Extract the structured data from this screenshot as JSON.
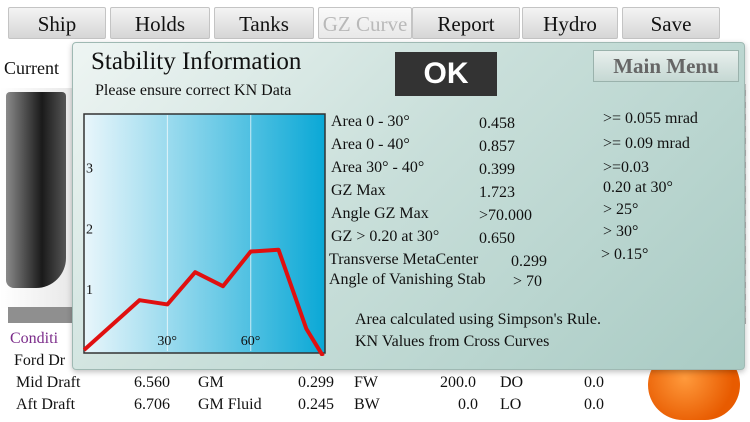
{
  "tabs": [
    {
      "label": "Ship",
      "disabled": false
    },
    {
      "label": "Holds",
      "disabled": false
    },
    {
      "label": "Tanks",
      "disabled": false
    },
    {
      "label": "GZ Curve",
      "disabled": true
    },
    {
      "label": "Report",
      "disabled": false
    },
    {
      "label": "Hydro",
      "disabled": false
    },
    {
      "label": "Save",
      "disabled": false
    }
  ],
  "background": {
    "current_label": "Current",
    "condition_label": "Conditi",
    "rows": [
      {
        "c1": "Ford Dr",
        "c2": "",
        "c3": "",
        "c4": "",
        "c5": "",
        "c6": "",
        "c7": "",
        "c8": ""
      },
      {
        "c1": "Mid Draft",
        "c2": "6.560",
        "c3": "GM",
        "c4": "0.299",
        "c5": "FW",
        "c6": "200.0",
        "c7": "DO",
        "c8": "0.0"
      },
      {
        "c1": "Aft Draft",
        "c2": "6.706",
        "c3": "GM Fluid",
        "c4": "0.245",
        "c5": "BW",
        "c6": "0.0",
        "c7": "LO",
        "c8": "0.0"
      }
    ]
  },
  "dialog": {
    "title": "Stability Information",
    "subtitle": "Please ensure correct KN Data",
    "ok_label": "OK",
    "main_menu_label": "Main Menu",
    "rows": [
      {
        "label": "Area 0 - 30°",
        "value": "0.458",
        "criterion": ">= 0.055 mrad"
      },
      {
        "label": "Area 0 - 40°",
        "value": "0.857",
        "criterion": ">= 0.09 mrad"
      },
      {
        "label": "Area 30° - 40°",
        "value": "0.399",
        "criterion": ">=0.03"
      },
      {
        "label": "GZ Max",
        "value": "1.723",
        "criterion": "0.20 at 30°"
      },
      {
        "label": "Angle GZ Max",
        "value": ">70.000",
        "criterion": "> 25°"
      },
      {
        "label": "GZ > 0.20 at 30°",
        "value": "0.650",
        "criterion": "> 30°"
      }
    ],
    "extra_criterion": "> 0.15°",
    "transverse_label": "Transverse MetaCenter",
    "transverse_value": "0.299",
    "vanishing_label": "Angle of Vanishing Stab",
    "vanishing_value": "> 70",
    "note1": "Area calculated using Simpson's Rule.",
    "note2": "KN Values from Cross Curves"
  },
  "chart_data": {
    "type": "line",
    "xlabel": "",
    "ylabel": "",
    "x_ticks": [
      "30°",
      "60°"
    ],
    "y_ticks": [
      "1",
      "2",
      "3"
    ],
    "xlim": [
      0,
      86
    ],
    "ylim": [
      0,
      3.9
    ],
    "series": [
      {
        "x": [
          0,
          20,
          30,
          40,
          50,
          60,
          70,
          80,
          86
        ],
        "y": [
          0.0,
          0.82,
          0.75,
          1.28,
          1.05,
          1.62,
          1.65,
          0.35,
          -0.1
        ],
        "color": "#e01010"
      }
    ],
    "background_gradient": [
      "#e9f6fb",
      "#0aa8d6"
    ]
  }
}
